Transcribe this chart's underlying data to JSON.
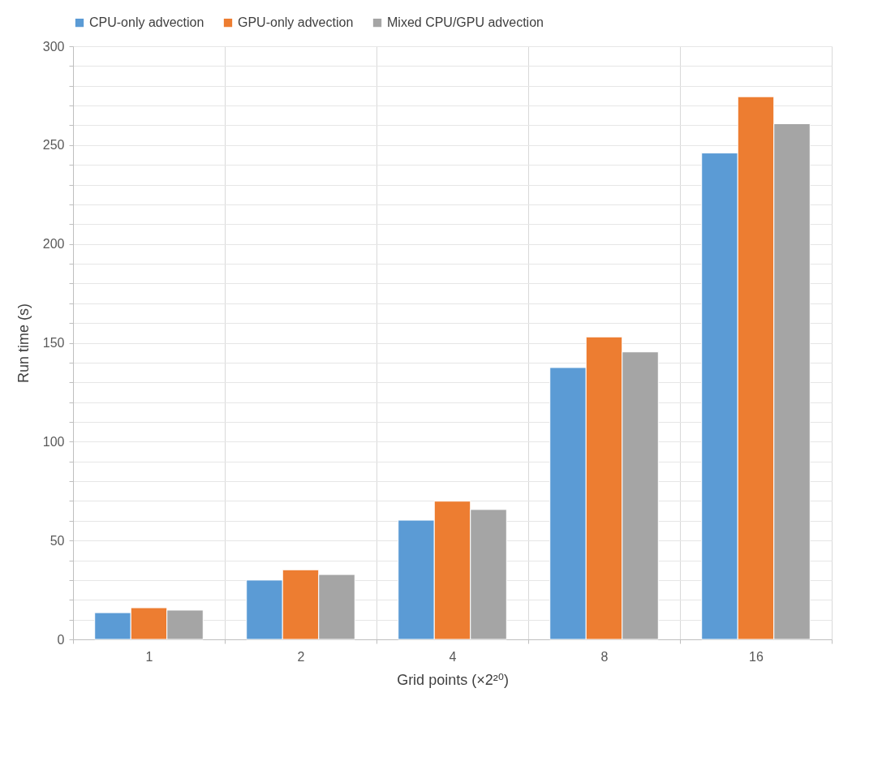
{
  "chart_data": {
    "type": "bar",
    "categories": [
      "1",
      "2",
      "4",
      "8",
      "16"
    ],
    "xlabel": "Grid points (×2²⁰)",
    "ylabel": "Run time (s)",
    "series": [
      {
        "name": "CPU-only advection",
        "color": "#5b9bd5",
        "values": [
          13.5,
          30,
          60.3,
          137.5,
          246
        ]
      },
      {
        "name": "GPU-only advection",
        "color": "#ed7d31",
        "values": [
          16,
          35.2,
          69.9,
          153,
          274.5
        ]
      },
      {
        "name": "Mixed CPU/GPU advection",
        "color": "#a5a5a5",
        "values": [
          14.8,
          32.8,
          65.7,
          145.4,
          260.8
        ]
      }
    ],
    "ylim": [
      0,
      300
    ],
    "yticks": [
      0,
      {
        "value": 10,
        "label": null
      },
      {
        "value": 20,
        "label": null
      },
      {
        "value": 30,
        "label": null
      },
      {
        "value": 40,
        "label": null
      },
      50,
      {
        "value": 60,
        "label": null
      },
      {
        "value": 70,
        "label": null
      },
      {
        "value": 80,
        "label": null
      },
      {
        "value": 90,
        "label": null
      },
      100,
      {
        "value": 110,
        "label": null
      },
      {
        "value": 120,
        "label": null
      },
      {
        "value": 130,
        "label": null
      },
      {
        "value": 140,
        "label": null
      },
      150,
      {
        "value": 160,
        "label": null
      },
      {
        "value": 170,
        "label": null
      },
      {
        "value": 180,
        "label": null
      },
      {
        "value": 190,
        "label": null
      },
      200,
      {
        "value": 210,
        "label": null
      },
      {
        "value": 220,
        "label": null
      },
      {
        "value": 230,
        "label": null
      },
      {
        "value": 240,
        "label": null
      },
      250,
      {
        "value": 260,
        "label": null
      },
      {
        "value": 270,
        "label": null
      },
      {
        "value": 280,
        "label": null
      },
      {
        "value": 290,
        "label": null
      },
      300
    ],
    "grid": true,
    "legend": "top"
  }
}
